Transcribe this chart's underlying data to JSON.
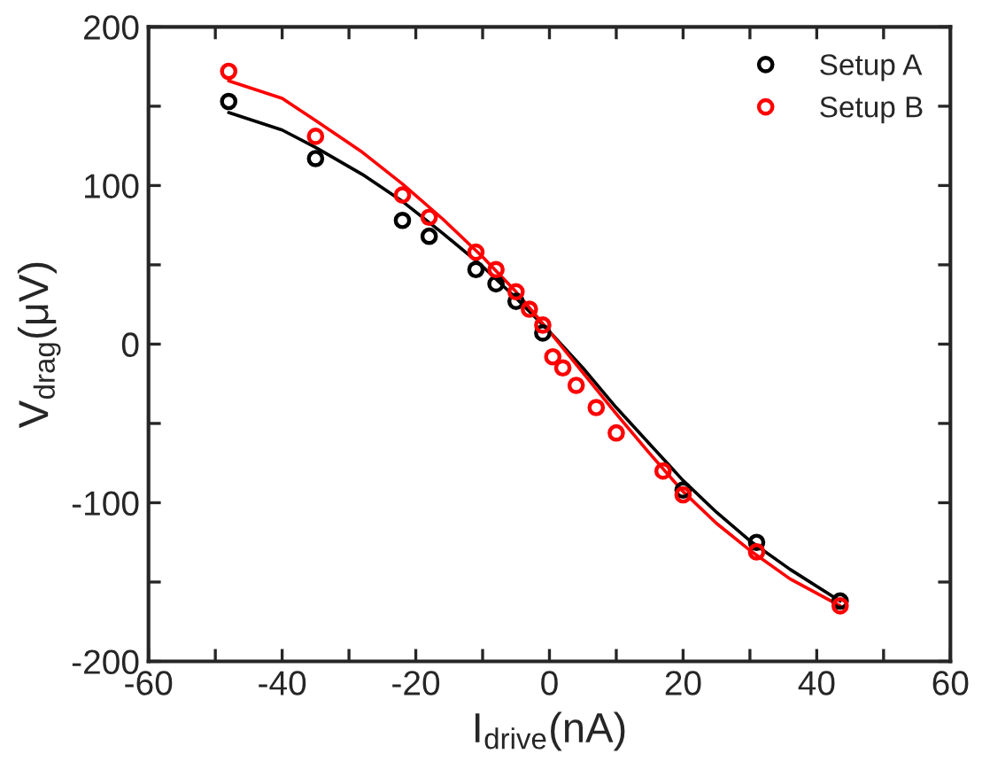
{
  "chart_data": {
    "type": "scatter",
    "xlabel": "I$_{drive}$(nA)",
    "ylabel": "V$_{drag}$(μV)",
    "xlim": [
      -60,
      60
    ],
    "ylim": [
      -200,
      200
    ],
    "xticks": [
      -60,
      {
        "value": -50,
        "label": null
      },
      -40,
      {
        "value": -30,
        "label": null
      },
      -20,
      {
        "value": -10,
        "label": null
      },
      0,
      {
        "value": 10,
        "label": null
      },
      20,
      {
        "value": 30,
        "label": null
      },
      40,
      {
        "value": 50,
        "label": null
      },
      60
    ],
    "yticks": [
      -200,
      {
        "value": -150,
        "label": null
      },
      -100,
      {
        "value": -50,
        "label": null
      },
      0,
      {
        "value": 50,
        "label": null
      },
      100,
      {
        "value": 150,
        "label": null
      },
      200
    ],
    "legend": "top right",
    "grid": false,
    "series": [
      {
        "name": "Setup A",
        "color": "#000000",
        "marker": "circle",
        "x": [
          -48,
          -35,
          -22,
          -18,
          -11,
          -8,
          -5,
          -1,
          4,
          10,
          20,
          31,
          43.5
        ],
        "values": [
          153,
          117,
          78,
          68,
          47,
          38,
          27,
          7,
          null,
          null,
          -92,
          -125,
          -162
        ]
      },
      {
        "name": "Setup B",
        "color": "#ff0000",
        "marker": "circle",
        "x": [
          -48,
          -35,
          -22,
          -18,
          -11,
          -8,
          -5,
          -3,
          -1,
          0.5,
          2,
          4,
          7,
          10,
          17,
          20,
          31,
          43.5
        ],
        "values": [
          172,
          131,
          94,
          80,
          58,
          47,
          33,
          22,
          12,
          -8,
          -15,
          -26,
          -40,
          -56,
          -80,
          -95,
          -131,
          -165
        ]
      },
      {
        "type": "line",
        "color": "#000000",
        "x": [
          -48,
          -40,
          -35,
          -28,
          -22,
          -16,
          -10,
          -5,
          0,
          5,
          10,
          15,
          20,
          25,
          30,
          36,
          43.5
        ],
        "values": [
          146,
          135,
          124,
          107,
          90,
          70,
          49,
          29,
          8,
          -15,
          -40,
          -63,
          -86,
          -106,
          -124,
          -142,
          -162
        ]
      },
      {
        "type": "line",
        "color": "#ff0000",
        "x": [
          -48,
          -40,
          -35,
          -28,
          -22,
          -16,
          -10,
          -5,
          0,
          5,
          10,
          15,
          20,
          25,
          30,
          36,
          43.5
        ],
        "values": [
          166,
          155,
          141,
          121,
          101,
          79,
          55,
          33,
          8,
          -18,
          -44,
          -69,
          -93,
          -113,
          -130,
          -148,
          -165
        ]
      }
    ]
  }
}
